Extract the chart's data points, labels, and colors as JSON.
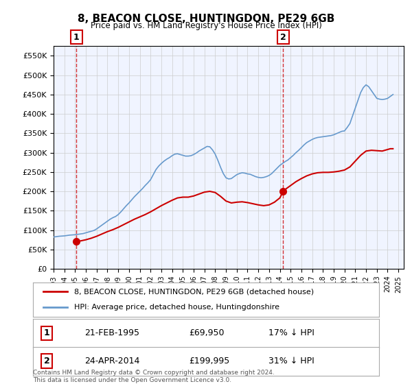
{
  "title": "8, BEACON CLOSE, HUNTINGDON, PE29 6GB",
  "subtitle": "Price paid vs. HM Land Registry's House Price Index (HPI)",
  "legend_label_red": "8, BEACON CLOSE, HUNTINGDON, PE29 6GB (detached house)",
  "legend_label_blue": "HPI: Average price, detached house, Huntingdonshire",
  "annotation1": {
    "label": "1",
    "date": "21-FEB-1995",
    "price": 69950,
    "pct": "17%↓ HPI"
  },
  "annotation2": {
    "label": "2",
    "date": "24-APR-2014",
    "price": 199995,
    "pct": "31%↓ HPI"
  },
  "footer": "Contains HM Land Registry data © Crown copyright and database right 2024.\nThis data is licensed under the Open Government Licence v3.0.",
  "ylim": [
    0,
    575000
  ],
  "yticks": [
    0,
    50000,
    100000,
    150000,
    200000,
    250000,
    300000,
    350000,
    400000,
    450000,
    500000,
    550000
  ],
  "xlim_start": 1993.0,
  "xlim_end": 2025.5,
  "background_color": "#f0f4ff",
  "plot_bg_color": "#f0f4ff",
  "grid_color": "#cccccc",
  "red_line_color": "#cc0000",
  "blue_line_color": "#6699cc",
  "marker1_x": 1995.13,
  "marker1_y": 69950,
  "marker2_x": 2014.31,
  "marker2_y": 199995,
  "vline1_x": 1995.13,
  "vline2_x": 2014.31,
  "hpi_data_x": [
    1993.0,
    1993.25,
    1993.5,
    1993.75,
    1994.0,
    1994.25,
    1994.5,
    1994.75,
    1995.0,
    1995.25,
    1995.5,
    1995.75,
    1996.0,
    1996.25,
    1996.5,
    1996.75,
    1997.0,
    1997.25,
    1997.5,
    1997.75,
    1998.0,
    1998.25,
    1998.5,
    1998.75,
    1999.0,
    1999.25,
    1999.5,
    1999.75,
    2000.0,
    2000.25,
    2000.5,
    2000.75,
    2001.0,
    2001.25,
    2001.5,
    2001.75,
    2002.0,
    2002.25,
    2002.5,
    2002.75,
    2003.0,
    2003.25,
    2003.5,
    2003.75,
    2004.0,
    2004.25,
    2004.5,
    2004.75,
    2005.0,
    2005.25,
    2005.5,
    2005.75,
    2006.0,
    2006.25,
    2006.5,
    2006.75,
    2007.0,
    2007.25,
    2007.5,
    2007.75,
    2008.0,
    2008.25,
    2008.5,
    2008.75,
    2009.0,
    2009.25,
    2009.5,
    2009.75,
    2010.0,
    2010.25,
    2010.5,
    2010.75,
    2011.0,
    2011.25,
    2011.5,
    2011.75,
    2012.0,
    2012.25,
    2012.5,
    2012.75,
    2013.0,
    2013.25,
    2013.5,
    2013.75,
    2014.0,
    2014.25,
    2014.5,
    2014.75,
    2015.0,
    2015.25,
    2015.5,
    2015.75,
    2016.0,
    2016.25,
    2016.5,
    2016.75,
    2017.0,
    2017.25,
    2017.5,
    2017.75,
    2018.0,
    2018.25,
    2018.5,
    2018.75,
    2019.0,
    2019.25,
    2019.5,
    2019.75,
    2020.0,
    2020.25,
    2020.5,
    2020.75,
    2021.0,
    2021.25,
    2021.5,
    2021.75,
    2022.0,
    2022.25,
    2022.5,
    2022.75,
    2023.0,
    2023.25,
    2023.5,
    2023.75,
    2024.0,
    2024.25,
    2024.5
  ],
  "hpi_data_y": [
    82000,
    83000,
    84000,
    84500,
    85000,
    86000,
    87000,
    87500,
    88000,
    89000,
    90000,
    91000,
    93000,
    95000,
    97000,
    99000,
    103000,
    108000,
    113000,
    118000,
    123000,
    128000,
    132000,
    135000,
    140000,
    147000,
    155000,
    163000,
    170000,
    178000,
    186000,
    193000,
    200000,
    207000,
    215000,
    222000,
    230000,
    243000,
    256000,
    265000,
    272000,
    278000,
    283000,
    287000,
    292000,
    296000,
    297000,
    295000,
    293000,
    291000,
    291000,
    292000,
    295000,
    299000,
    304000,
    308000,
    312000,
    316000,
    315000,
    307000,
    296000,
    280000,
    262000,
    246000,
    235000,
    232000,
    233000,
    238000,
    243000,
    246000,
    248000,
    247000,
    245000,
    244000,
    241000,
    238000,
    236000,
    235000,
    236000,
    238000,
    241000,
    246000,
    253000,
    260000,
    267000,
    272000,
    277000,
    281000,
    287000,
    293000,
    300000,
    306000,
    313000,
    320000,
    326000,
    330000,
    334000,
    337000,
    339000,
    340000,
    341000,
    342000,
    343000,
    344000,
    346000,
    349000,
    352000,
    355000,
    356000,
    365000,
    375000,
    395000,
    415000,
    435000,
    455000,
    468000,
    475000,
    470000,
    460000,
    450000,
    440000,
    438000,
    437000,
    438000,
    440000,
    445000,
    450000
  ],
  "red_data_x": [
    1995.13,
    1995.5,
    1996.0,
    1996.5,
    1997.0,
    1997.5,
    1998.0,
    1998.5,
    1999.0,
    1999.5,
    2000.0,
    2000.5,
    2001.0,
    2001.5,
    2002.0,
    2002.5,
    2003.0,
    2003.5,
    2004.0,
    2004.5,
    2005.0,
    2005.5,
    2006.0,
    2006.5,
    2007.0,
    2007.5,
    2008.0,
    2008.5,
    2009.0,
    2009.5,
    2010.0,
    2010.5,
    2011.0,
    2011.5,
    2012.0,
    2012.5,
    2013.0,
    2013.5,
    2014.0,
    2014.31,
    2014.5,
    2015.0,
    2015.5,
    2016.0,
    2016.5,
    2017.0,
    2017.5,
    2018.0,
    2018.5,
    2019.0,
    2019.5,
    2020.0,
    2020.5,
    2021.0,
    2021.5,
    2022.0,
    2022.5,
    2023.0,
    2023.5,
    2024.0,
    2024.25,
    2024.5
  ],
  "red_data_y": [
    69950,
    72000,
    75000,
    79000,
    84000,
    90000,
    96000,
    101000,
    107000,
    114000,
    121000,
    128000,
    134000,
    140000,
    147000,
    155000,
    163000,
    170000,
    177000,
    183000,
    185000,
    185000,
    188000,
    193000,
    198000,
    200000,
    197000,
    187000,
    175000,
    170000,
    172000,
    173000,
    171000,
    168000,
    165000,
    163000,
    165000,
    172000,
    183000,
    199995,
    205000,
    215000,
    225000,
    233000,
    240000,
    245000,
    248000,
    249000,
    249000,
    250000,
    252000,
    255000,
    263000,
    278000,
    293000,
    304000,
    306000,
    305000,
    304000,
    308000,
    310000,
    310000
  ]
}
